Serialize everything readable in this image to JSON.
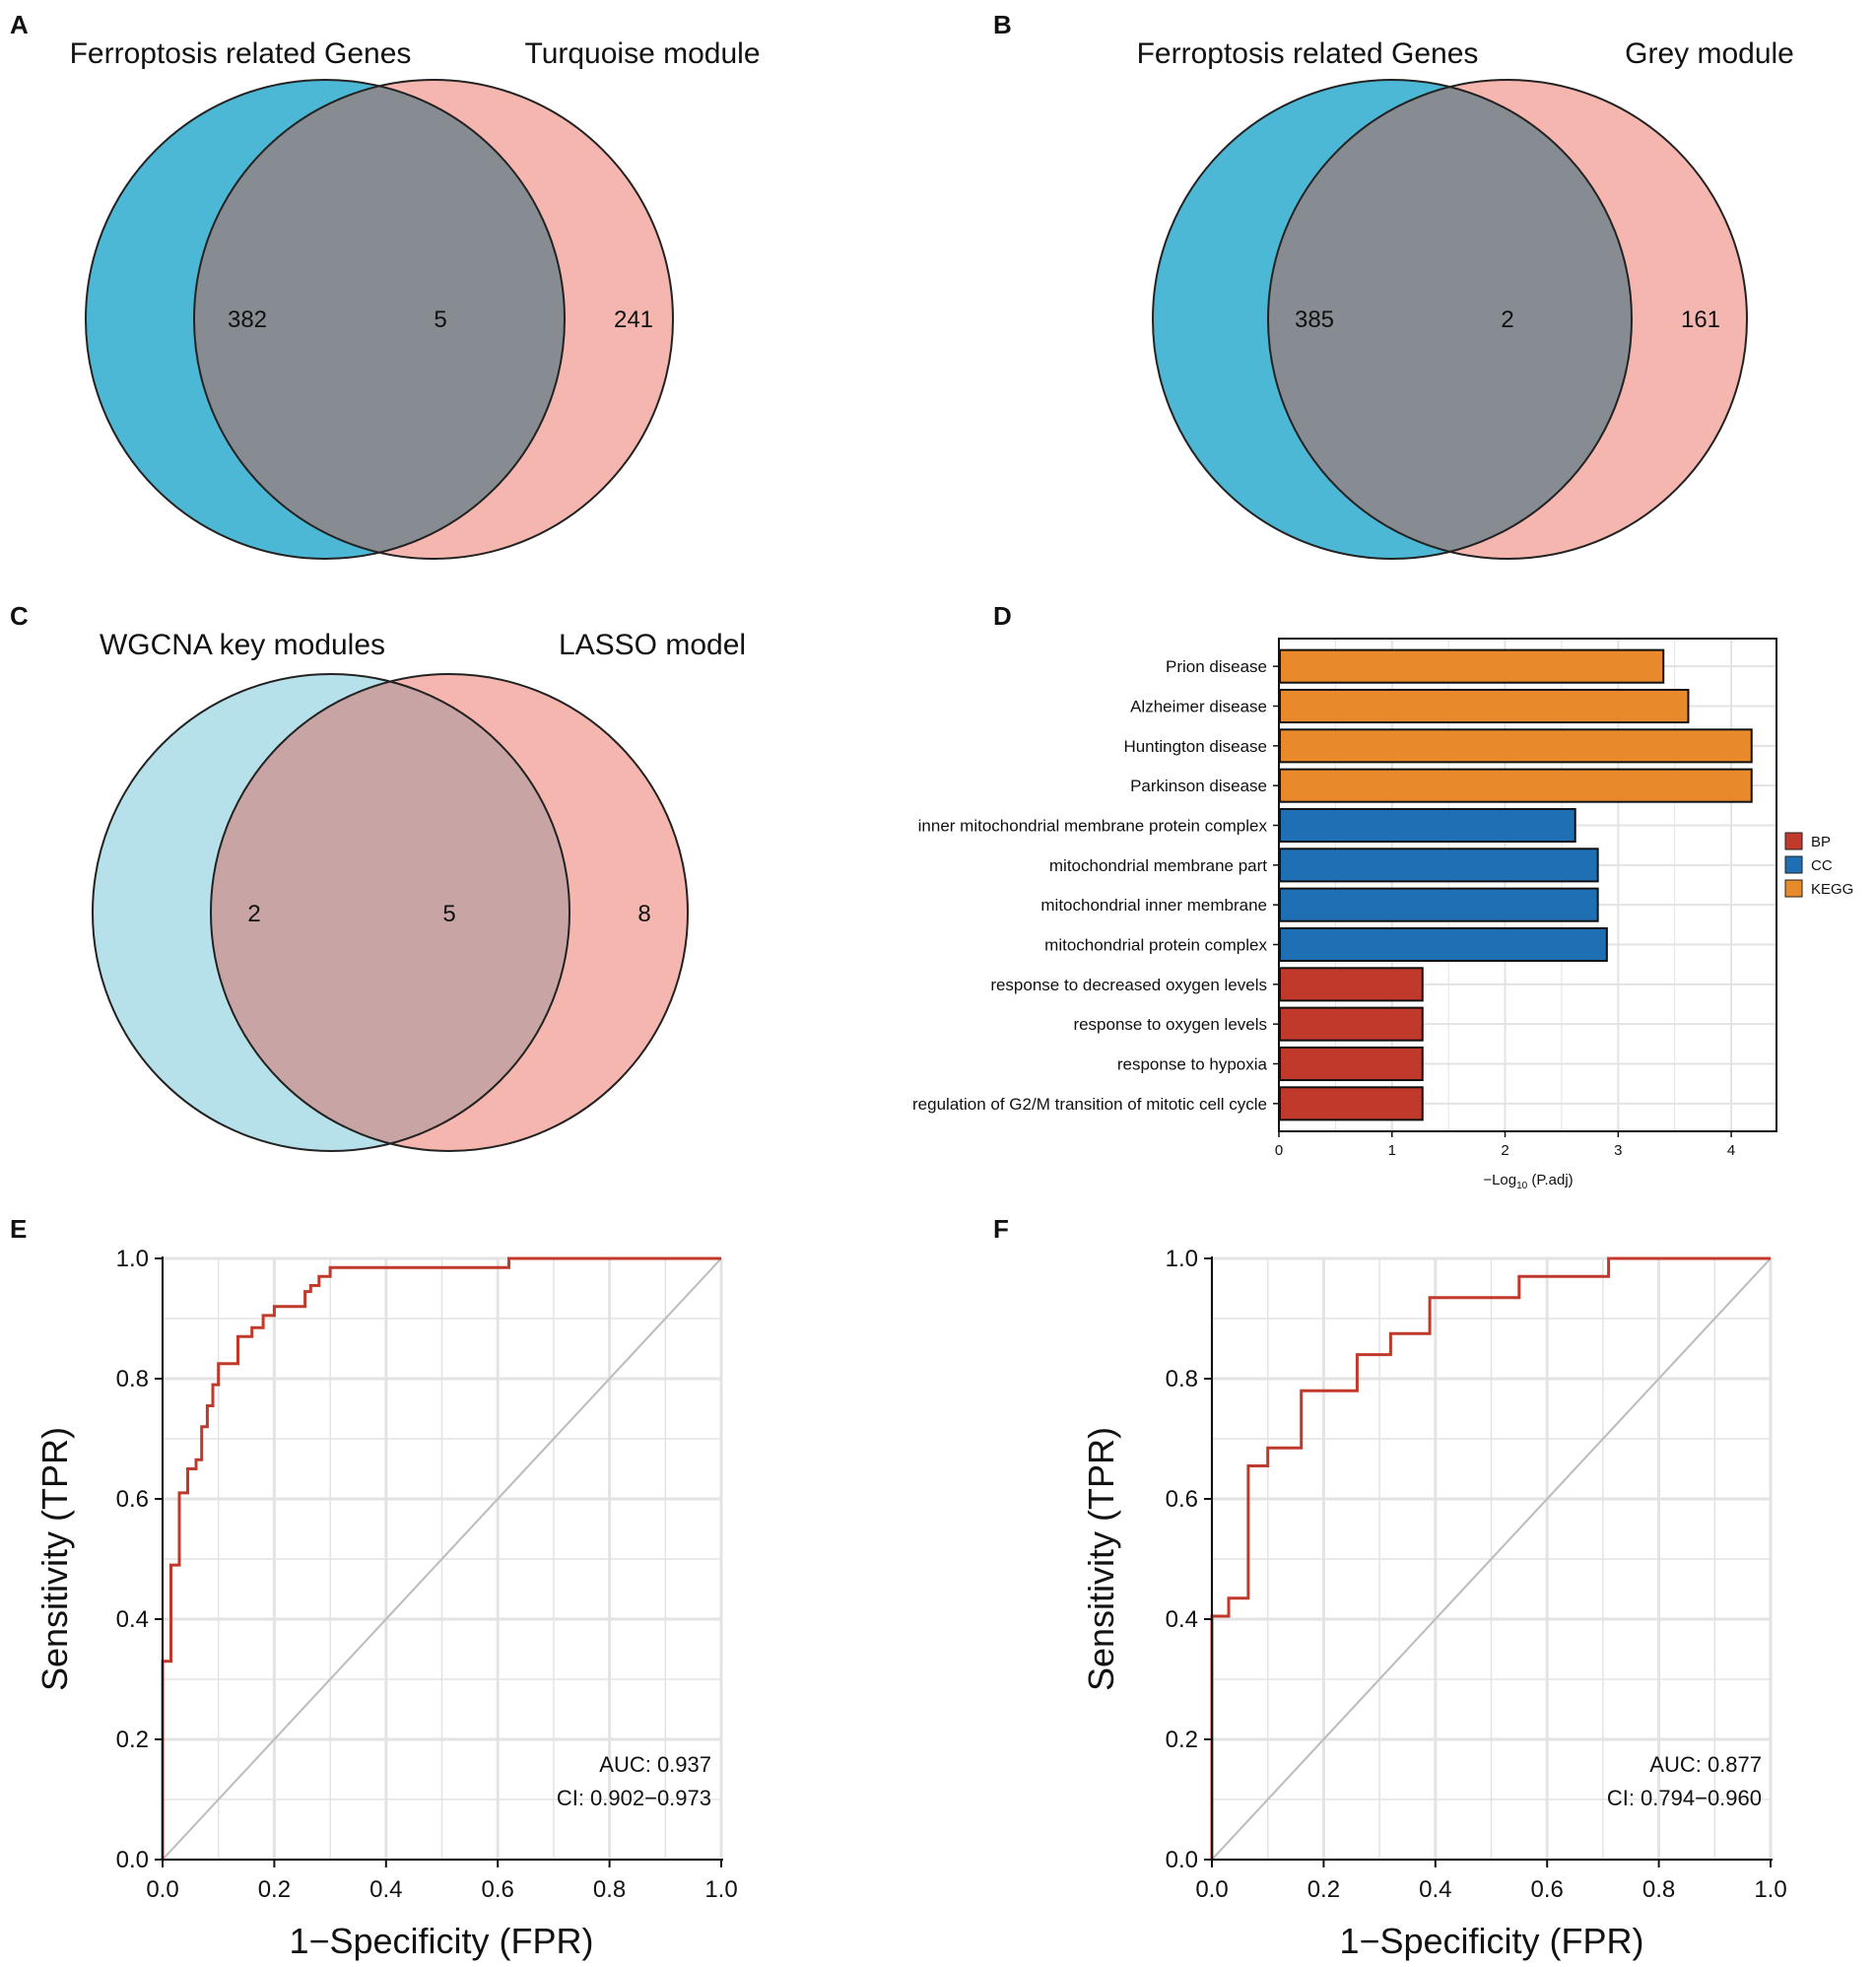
{
  "panels": [
    {
      "letter": "A",
      "left_title": "Ferroptosis related Genes",
      "right_title": "Turquoise module",
      "left_only": "382",
      "both": "5",
      "right_only": "241"
    },
    {
      "letter": "B",
      "left_title": "Ferroptosis related Genes",
      "right_title": "Grey module",
      "left_only": "385",
      "both": "2",
      "right_only": "161"
    },
    {
      "letter": "C",
      "left_title": "WGCNA key modules",
      "right_title": "LASSO model",
      "left_only": "2",
      "both": "5",
      "right_only": "8"
    }
  ],
  "colors": {
    "turquoise": "#4db8d6",
    "pink": "#f4b6ae",
    "overlap_grey": "#878b92",
    "light_blue": "#b7e1ea",
    "mauve": "#c9a4a4",
    "BP": "#c0392b",
    "CC": "#1f6fb5",
    "KEGG": "#e8892b",
    "roc_line": "#c0392b",
    "diagonal": "#bbbbbb",
    "grid": "#e3e3e3"
  },
  "enrichment": {
    "letter": "D",
    "xlabel_prefix": "−Log",
    "xlabel_sub": "10",
    "xlabel_suffix": " (P.adj)",
    "legend": [
      "BP",
      "CC",
      "KEGG"
    ]
  },
  "roc_labels": {
    "xlabel": "1−Specificity (FPR)",
    "ylabel": "Sensitivity (TPR)",
    "ticks": [
      "0.0",
      "0.2",
      "0.4",
      "0.6",
      "0.8",
      "1.0"
    ]
  },
  "chart_data": [
    {
      "type": "bar",
      "orientation": "horizontal",
      "title": "",
      "xlabel": "−Log10 (P.adj)",
      "xlim": [
        0,
        4.4
      ],
      "xticks": [
        0,
        1,
        2,
        3,
        4
      ],
      "categories": [
        "Prion disease",
        "Alzheimer disease",
        "Huntington disease",
        "Parkinson disease",
        "inner mitochondrial membrane protein complex",
        "mitochondrial membrane part",
        "mitochondrial inner membrane",
        "mitochondrial protein complex",
        "response to decreased oxygen levels",
        "response to oxygen levels",
        "response to hypoxia",
        "regulation of G2/M transition of mitotic cell cycle"
      ],
      "values": [
        3.4,
        3.62,
        4.18,
        4.18,
        2.62,
        2.82,
        2.82,
        2.9,
        1.27,
        1.27,
        1.27,
        1.27
      ],
      "groups": [
        "KEGG",
        "KEGG",
        "KEGG",
        "KEGG",
        "CC",
        "CC",
        "CC",
        "CC",
        "BP",
        "BP",
        "BP",
        "BP"
      ],
      "legend": [
        "BP",
        "CC",
        "KEGG"
      ]
    },
    {
      "type": "line",
      "panel": "E",
      "title": "",
      "xlabel": "1−Specificity (FPR)",
      "ylabel": "Sensitivity (TPR)",
      "xlim": [
        0,
        1
      ],
      "ylim": [
        0,
        1
      ],
      "auc_text": "AUC: 0.937",
      "ci_text": "CI: 0.902−0.973",
      "x": [
        0,
        0,
        0.015,
        0.015,
        0.03,
        0.03,
        0.045,
        0.045,
        0.06,
        0.06,
        0.07,
        0.07,
        0.08,
        0.08,
        0.09,
        0.09,
        0.1,
        0.1,
        0.11,
        0.11,
        0.135,
        0.135,
        0.16,
        0.16,
        0.18,
        0.18,
        0.2,
        0.2,
        0.225,
        0.225,
        0.255,
        0.255,
        0.265,
        0.265,
        0.28,
        0.28,
        0.3,
        0.3,
        0.62,
        0.62,
        1.0
      ],
      "y": [
        0,
        0.33,
        0.33,
        0.49,
        0.49,
        0.61,
        0.61,
        0.65,
        0.65,
        0.665,
        0.665,
        0.72,
        0.72,
        0.755,
        0.755,
        0.79,
        0.79,
        0.825,
        0.825,
        0.825,
        0.825,
        0.87,
        0.87,
        0.885,
        0.885,
        0.905,
        0.905,
        0.92,
        0.92,
        0.92,
        0.92,
        0.945,
        0.945,
        0.955,
        0.955,
        0.97,
        0.97,
        0.985,
        0.985,
        1.0,
        1.0
      ]
    },
    {
      "type": "line",
      "panel": "F",
      "title": "",
      "xlabel": "1−Specificity (FPR)",
      "ylabel": "Sensitivity (TPR)",
      "xlim": [
        0,
        1
      ],
      "ylim": [
        0,
        1
      ],
      "auc_text": "AUC: 0.877",
      "ci_text": "CI: 0.794−0.960",
      "x": [
        0,
        0,
        0.03,
        0.03,
        0.065,
        0.065,
        0.1,
        0.1,
        0.16,
        0.16,
        0.26,
        0.26,
        0.32,
        0.32,
        0.39,
        0.39,
        0.55,
        0.55,
        0.71,
        0.71,
        1.0
      ],
      "y": [
        0,
        0.405,
        0.405,
        0.435,
        0.435,
        0.655,
        0.655,
        0.685,
        0.685,
        0.78,
        0.78,
        0.84,
        0.84,
        0.875,
        0.875,
        0.935,
        0.935,
        0.97,
        0.97,
        1.0,
        1.0
      ]
    }
  ]
}
